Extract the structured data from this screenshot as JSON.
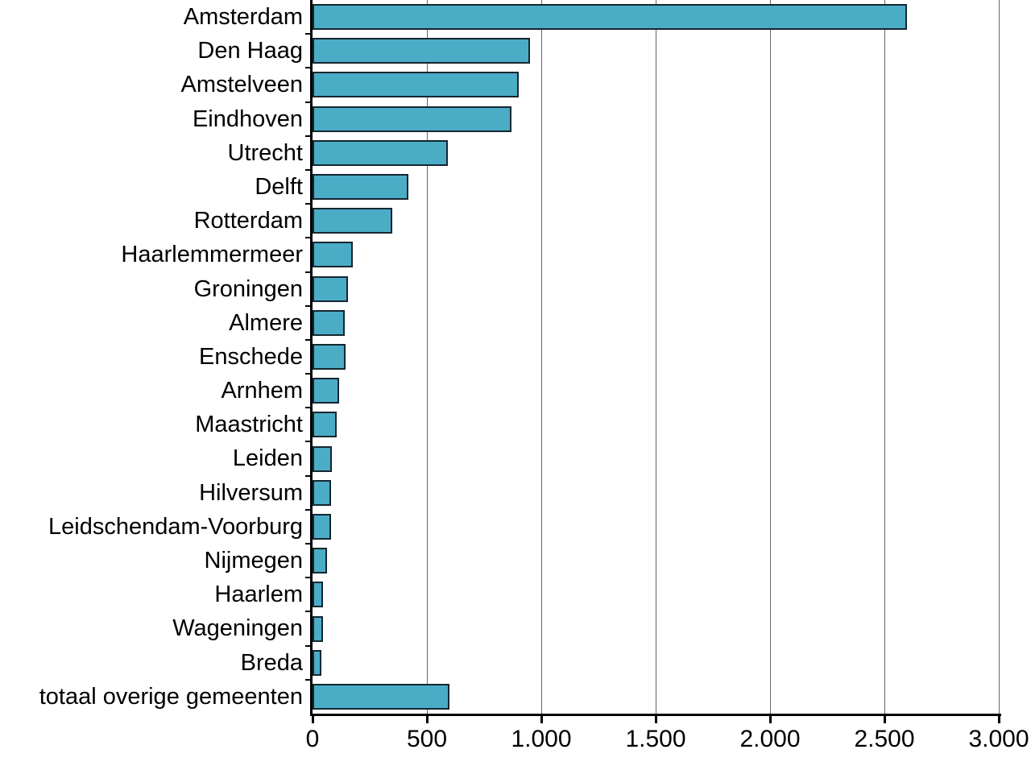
{
  "chart_data": {
    "type": "bar",
    "orientation": "horizontal",
    "title": "",
    "xlabel": "",
    "ylabel": "",
    "xlim": [
      0,
      3000
    ],
    "grid": "vertical gridlines every 500, full plot height",
    "legend": "none",
    "categories": [
      "Amsterdam",
      "Den Haag",
      "Amstelveen",
      "Eindhoven",
      "Utrecht",
      "Delft",
      "Rotterdam",
      "Haarlemmermeer",
      "Groningen",
      "Almere",
      "Enschede",
      "Arnhem",
      "Maastricht",
      "Leiden",
      "Hilversum",
      "Leidschendam-Voorburg",
      "Nijmegen",
      "Haarlem",
      "Wageningen",
      "Breda",
      "totaal overige gemeenten"
    ],
    "values": [
      2600,
      950,
      900,
      870,
      590,
      420,
      350,
      175,
      155,
      140,
      145,
      115,
      105,
      85,
      80,
      80,
      65,
      45,
      45,
      40,
      600
    ],
    "xticks": {
      "values": [
        0,
        500,
        1000,
        1500,
        2000,
        2500,
        3000
      ],
      "labels": [
        "0",
        "500",
        "1.000",
        "1.500",
        "2.000",
        "2.500",
        "3.000"
      ]
    },
    "colors": {
      "bar_fill": "#4bacc6",
      "bar_border": "#152630",
      "gridline": "#666666",
      "axis": "#000000",
      "text": "#000000",
      "background": "#ffffff"
    }
  }
}
